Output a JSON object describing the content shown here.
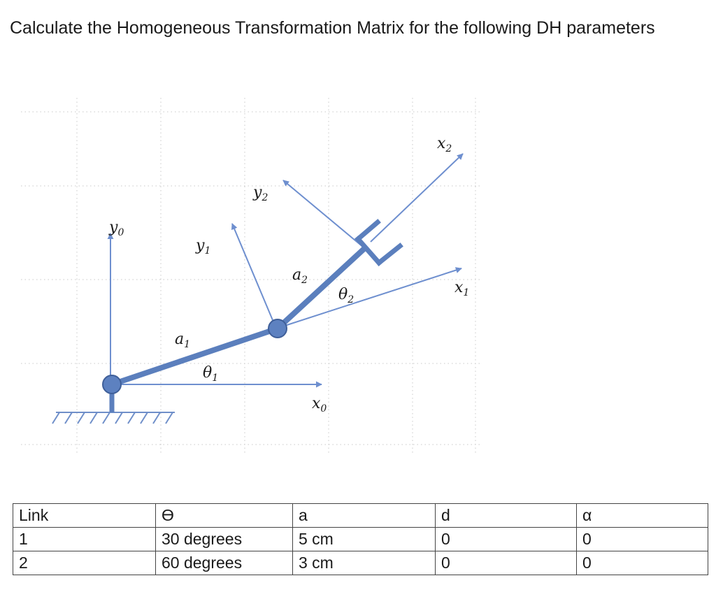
{
  "question": "Calculate the Homogeneous Transformation Matrix for the following DH parameters",
  "diagram": {
    "labels": {
      "y0": "y",
      "y0_sub": "0",
      "y1": "y",
      "y1_sub": "1",
      "y2": "y",
      "y2_sub": "2",
      "x0": "x",
      "x0_sub": "0",
      "x1": "x",
      "x1_sub": "1",
      "x2": "x",
      "x2_sub": "2",
      "a1": "a",
      "a1_sub": "1",
      "a2": "a",
      "a2_sub": "2",
      "theta1": "θ",
      "theta1_sub": "1",
      "theta2": "θ",
      "theta2_sub": "2"
    },
    "colors": {
      "link": "#5b7fbd",
      "arrow": "#6e8fcf",
      "joint": "#5d81c0",
      "ground": "#6f8fc9"
    }
  },
  "table": {
    "headers": [
      "Link",
      "ϴ",
      "a",
      "d",
      "α"
    ],
    "rows": [
      [
        "1",
        "30 degrees",
        "5 cm",
        "0",
        "0"
      ],
      [
        "2",
        "60 degrees",
        "3 cm",
        "0",
        "0"
      ]
    ]
  }
}
